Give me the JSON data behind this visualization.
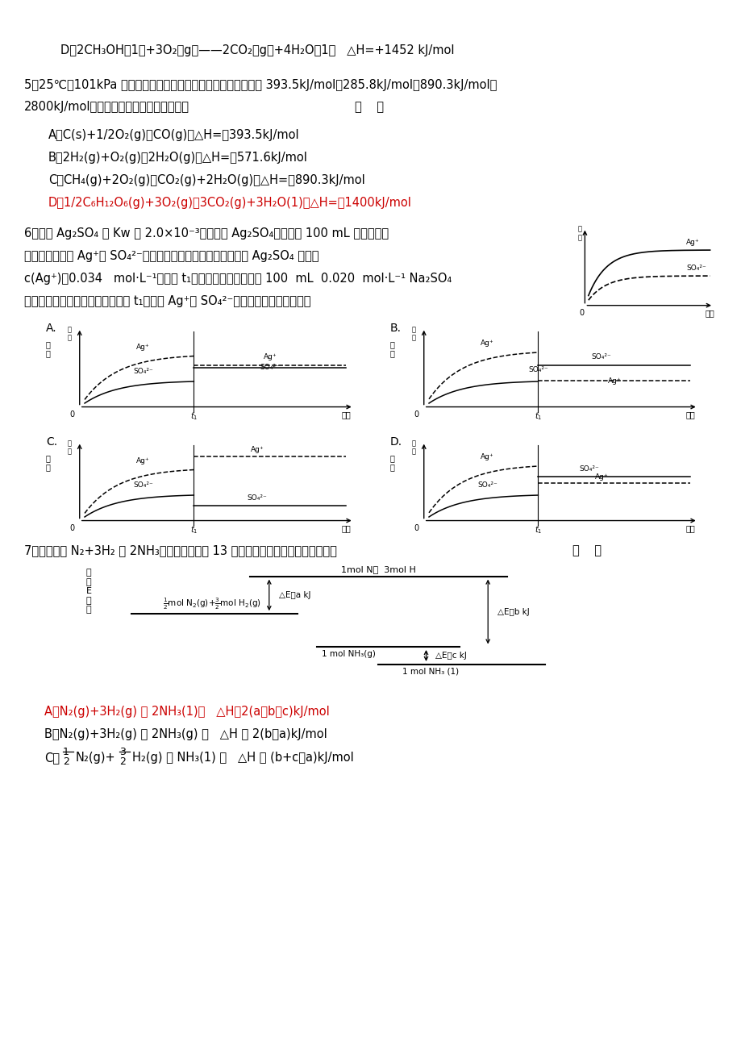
{
  "bg_color": "#ffffff",
  "text_color": "#000000",
  "red_color": "#cc0000",
  "line_d": "D、2CH₃OH（1）+3O₂（g）—2CO₂（g）+4H₂O（1）   △H=+1452 kJ/mol",
  "q5_line1": "5、25℃、10lkPa下，碗、氢气、甲烷和葡萄糖的燃烧热依次是393.5kJ/mol、285.8kJ/mol、890.3kJ/mol、",
  "q5_line2": "2800kJ/mol，则下列热化学方程式正确的是",
  "q5_bracket": "（      ）",
  "q5_A": "A、C(s)+1/2O₂(g)＝CO(g)；△H=－393.5kJ/mol",
  "q5_B": "B、2H₂(g)+O₂(g)＝2H₂O(g)；△H=＋571.6kJ/mol",
  "q5_C": "C、CH₄(g)+2O₂(g)＝CO₂(g)+2H₂O(g)；△H=－890.3kJ/mol",
  "q5_D": "D、1/2C₆H₁₂O₆(g)+3O₂(g)＝3CO₂(g)+3H₂O(1)；△H=－1400kJ/mol",
  "q6_line1": "6、已知Ag₂SO₄的 K₅ 为2.0×10⁻³，将适量Ag₂SO₄固体溶于100 mL水中至刚好",
  "q6_line2": "饱和，该过程中Ag⁺和SO₄²⁻浓度随时间变化关系如右图（饱和Ag₂SO₄溶液中",
  "q6_line3": "c(Ag⁺)＝0.034   mol·L⁻¹）。若t₁时刻在上述体系中加入100  mL  0.020  mol·L⁻¹ Na₂SO₄",
  "q6_line4": "溶液，下列示意图中，能正确表示t₁时刻后Ag⁺和SO₄²⁻浓度随时间变化关系的是",
  "q7_line": "7、化学反应N₂+3H₂ ＝ 2NH₃的能量变化如题 13 图所示，该反应的热化学方程式是",
  "q7_bracket": "（      ）",
  "q7_A": "A、N₂(g)+3H₂(g) ＝ 2NH₃(1)；   △H＝2(a－b－c)kJ/mol",
  "q7_B": "B、N₂(g)+3H₂(g) ＝ 2NH₃(g) ；   △H ＝ 2(b－a)kJ/mol",
  "q7_C1": "C、",
  "q7_C2": "N₂(g)+",
  "q7_C3": "H₂(g) ＝ NH₃(1) ；   △H ＝ (b+c－a)kJ/mol"
}
